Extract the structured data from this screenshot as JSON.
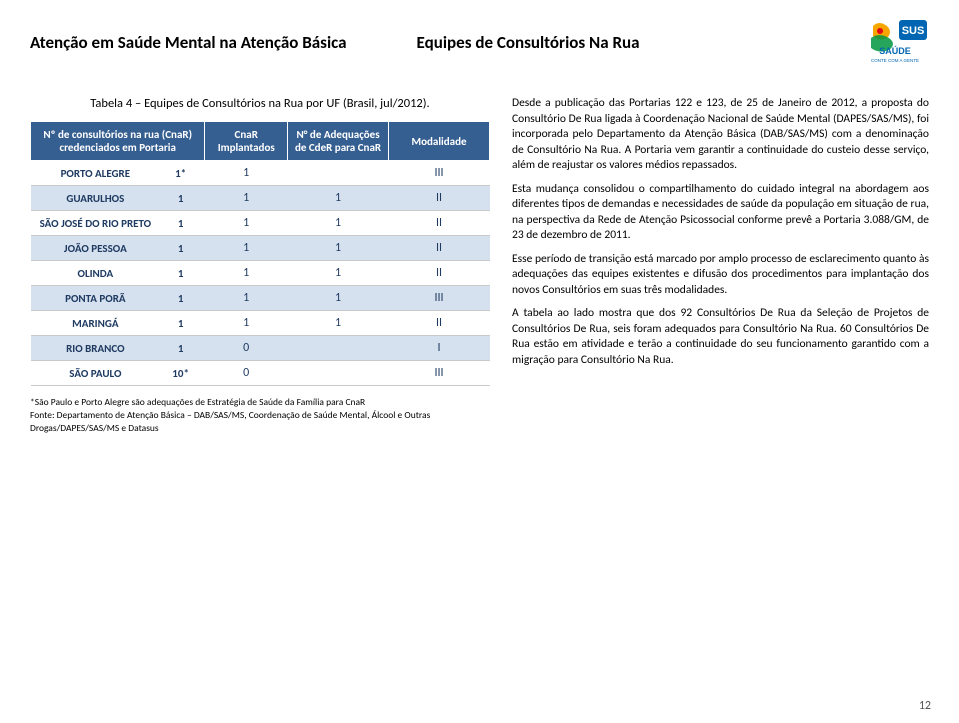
{
  "header": {
    "title_left": "Atenção em Saúde Mental na Atenção Básica",
    "title_right": "Equipes de Consultórios Na Rua"
  },
  "table": {
    "caption": "Tabela 4 – Equipes de Consultórios na Rua por UF (Brasil, jul/2012).",
    "headers": {
      "col1": "Nº de consultórios na rua (CnaR) credenciados em Portaria",
      "col2": "CnaR Implantados",
      "col3": "N° de Adequações de CdeR para CnaR",
      "col4": "Modalidade"
    },
    "rows": [
      {
        "city": "PORTO ALEGRE",
        "cred": "1*",
        "impl": "1",
        "adeq": "",
        "mod": "III"
      },
      {
        "city": "GUARULHOS",
        "cred": "1",
        "impl": "1",
        "adeq": "1",
        "mod": "II"
      },
      {
        "city": "SÃO JOSÉ DO RIO PRETO",
        "cred": "1",
        "impl": "1",
        "adeq": "1",
        "mod": "II"
      },
      {
        "city": "JOÃO PESSOA",
        "cred": "1",
        "impl": "1",
        "adeq": "1",
        "mod": "II"
      },
      {
        "city": "OLINDA",
        "cred": "1",
        "impl": "1",
        "adeq": "1",
        "mod": "II"
      },
      {
        "city": "PONTA PORÃ",
        "cred": "1",
        "impl": "1",
        "adeq": "1",
        "mod": "III"
      },
      {
        "city": "MARINGÁ",
        "cred": "1",
        "impl": "1",
        "adeq": "1",
        "mod": "II"
      },
      {
        "city": "RIO BRANCO",
        "cred": "1",
        "impl": "0",
        "adeq": "",
        "mod": "I"
      },
      {
        "city": "SÃO PAULO",
        "cred": "10*",
        "impl": "0",
        "adeq": "",
        "mod": "III"
      }
    ],
    "footnote": "*São Paulo e Porto Alegre são adequações de Estratégia de Saúde da Família para CnaR\nFonte: Departamento de Atenção Básica – DAB/SAS/MS, Coordenação de Saúde Mental, Álcool e Outras Drogas/DAPES/SAS/MS e Datasus"
  },
  "paragraphs": {
    "p1": "Desde a publicação das Portarias 122 e 123, de 25 de Janeiro de 2012, a proposta do Consultório De Rua ligada à Coordenação Nacional de Saúde Mental (DAPES/SAS/MS), foi incorporada pelo Departamento da Atenção Básica (DAB/SAS/MS) com a denominação de Consultório Na Rua. A Portaria vem garantir a continuidade do custeio desse serviço, além de reajustar os valores médios repassados.",
    "p2": "Esta mudança consolidou o compartilhamento do cuidado integral na abordagem aos diferentes tipos de demandas e necessidades de saúde da população em situação de rua, na perspectiva da Rede de Atenção Psicossocial conforme prevê a Portaria 3.088/GM, de 23 de dezembro de 2011.",
    "p3": "Esse período de transição está marcado por amplo processo de esclarecimento quanto às adequações das equipes existentes e difusão dos procedimentos para implantação dos novos Consultórios em suas três modalidades.",
    "p4": "A tabela ao lado mostra que dos 92 Consultórios De Rua da Seleção de Projetos de Consultórios De Rua, seis foram adequados para Consultório Na Rua. 60 Consultórios De Rua estão em atividade e terão a continuidade do seu funcionamento garantido com a migração para Consultório Na Rua."
  },
  "page_number": "12",
  "colors": {
    "header_bg": "#365f91",
    "header_fg": "#ffffff",
    "row_even": "#d6e1ef",
    "cell_text": "#1f3b62"
  },
  "logo": {
    "name": "sus-logo",
    "text_top": "SUS",
    "text_bottom": "SAÚDE",
    "tagline": "CONTE COM A GENTE"
  }
}
